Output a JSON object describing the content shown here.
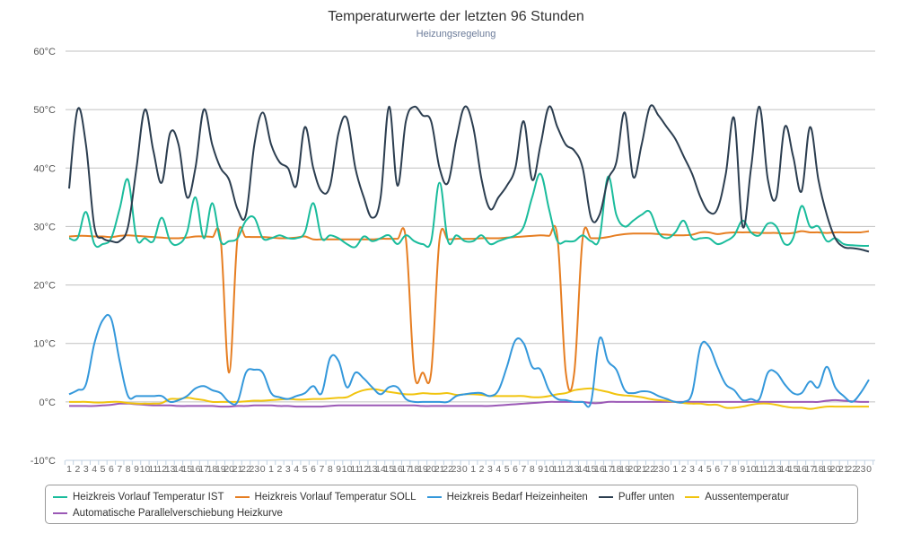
{
  "chart_data": {
    "type": "line",
    "title": "Temperaturwerte der letzten 96 Stunden",
    "subtitle": "Heizungsregelung",
    "xlabel": "",
    "ylabel": "",
    "ylim": [
      -10,
      60
    ],
    "yticks": [
      60,
      50,
      40,
      30,
      20,
      10,
      0,
      -10
    ],
    "y_unit": "°C",
    "grid": true,
    "legend_position": "bottom",
    "x": [
      "1",
      "2",
      "3",
      "4",
      "5",
      "6",
      "7",
      "8",
      "9",
      "10",
      "11",
      "12",
      "13",
      "14",
      "15",
      "16",
      "17",
      "18",
      "19",
      "20",
      "21",
      "22",
      "23",
      "0",
      "1",
      "2",
      "3",
      "4",
      "5",
      "6",
      "7",
      "8",
      "9",
      "10",
      "11",
      "12",
      "13",
      "14",
      "15",
      "16",
      "17",
      "18",
      "19",
      "20",
      "21",
      "22",
      "23",
      "0",
      "1",
      "2",
      "3",
      "4",
      "5",
      "6",
      "7",
      "8",
      "9",
      "10",
      "11",
      "12",
      "13",
      "14",
      "15",
      "16",
      "17",
      "18",
      "19",
      "20",
      "21",
      "22",
      "23",
      "0",
      "1",
      "2",
      "3",
      "4",
      "5",
      "6",
      "7",
      "8",
      "9",
      "10",
      "11",
      "12",
      "13",
      "14",
      "15",
      "16",
      "17",
      "18",
      "19",
      "20",
      "21",
      "22",
      "23",
      "0"
    ],
    "series": [
      {
        "name": "Heizkreis Vorlauf Temperatur IST",
        "color": "#1abc9c",
        "values": [
          28,
          28,
          32.5,
          27,
          27,
          28,
          33,
          38,
          28,
          28,
          27.5,
          31.5,
          27.5,
          27,
          29,
          35,
          28,
          34,
          27.5,
          27.5,
          28,
          31,
          31.5,
          28,
          28,
          28.5,
          28,
          28,
          29,
          34,
          28,
          28.5,
          28,
          27,
          26.5,
          28.3,
          27.5,
          28,
          28.5,
          27,
          28.5,
          27.5,
          27,
          27.5,
          37.5,
          27.5,
          28.5,
          27.5,
          27.5,
          28.5,
          27,
          27.5,
          28,
          28.5,
          30,
          35,
          39,
          33,
          27.5,
          27.5,
          27.5,
          28.5,
          27.5,
          28,
          38.5,
          32,
          30,
          31,
          32,
          32.5,
          29,
          28,
          29,
          31,
          28,
          28,
          28,
          27,
          27.5,
          28.5,
          31,
          29,
          28.5,
          30.5,
          30,
          27,
          28,
          33.5,
          30,
          30,
          27.5,
          28,
          27,
          26.8,
          26.7,
          26.7
        ]
      },
      {
        "name": "Heizkreis Vorlauf Temperatur SOLL",
        "color": "#e67e22",
        "values": [
          28.3,
          28.4,
          28.4,
          28.3,
          28.3,
          28.2,
          28.4,
          28.5,
          28.4,
          28.3,
          28.2,
          28.1,
          28,
          28,
          28.1,
          28.3,
          28.3,
          28.2,
          27.8,
          5,
          28,
          28.2,
          28.2,
          28.2,
          28.1,
          28,
          28,
          28.1,
          28.3,
          27.8,
          27.8,
          27.8,
          27.8,
          27.8,
          27.8,
          27.8,
          27.8,
          27.9,
          27.9,
          27.9,
          27.9,
          5,
          5,
          5,
          27.8,
          27.8,
          27.9,
          27.9,
          27.9,
          28,
          28,
          28,
          28.1,
          28.2,
          28.3,
          28.4,
          28.5,
          28.4,
          28.2,
          5,
          5,
          28,
          28,
          28,
          28.2,
          28.5,
          28.7,
          28.8,
          28.8,
          28.8,
          28.7,
          28.6,
          28.5,
          28.5,
          28.6,
          29,
          29,
          28.7,
          28.9,
          29,
          29,
          29,
          28.9,
          28.9,
          28.9,
          28.8,
          28.9,
          29.2,
          29,
          29,
          28.9,
          29,
          29,
          29,
          29,
          29.2
        ]
      },
      {
        "name": "Heizkreis Bedarf Heizeinheiten",
        "color": "#3498db",
        "values": [
          1.3,
          2,
          3,
          10,
          14,
          14.2,
          7,
          1,
          1,
          1,
          1,
          1,
          0,
          0.3,
          1,
          2.3,
          2.7,
          2,
          1.5,
          0,
          0,
          5,
          5.5,
          5,
          1.5,
          0.8,
          0.5,
          1,
          1.5,
          2.7,
          1.5,
          7.5,
          7,
          2.5,
          5,
          4,
          2.5,
          1.3,
          2.5,
          2.5,
          0.5,
          0,
          0,
          0,
          0,
          0,
          1,
          1.3,
          1.5,
          1.5,
          1,
          2,
          6,
          10.5,
          10,
          6,
          5.5,
          2,
          0.5,
          0.3,
          0,
          0,
          0,
          10.8,
          7,
          5.5,
          2,
          1.5,
          1.8,
          1.7,
          1,
          0.5,
          0,
          0,
          1.5,
          9.5,
          9.5,
          6,
          3,
          2,
          0.3,
          0.5,
          0.5,
          5,
          5,
          3,
          1.5,
          1.5,
          3.5,
          2.5,
          6,
          2.5,
          1,
          0,
          1.5,
          3.8
        ]
      },
      {
        "name": "Puffer unten",
        "color": "#2c3e50",
        "values": [
          36.5,
          50,
          44,
          30,
          28,
          27.5,
          27.5,
          30,
          40,
          50,
          43,
          37.5,
          46,
          44,
          35,
          40,
          50,
          44,
          40,
          38,
          33,
          32,
          44,
          49.5,
          44,
          41,
          40,
          37,
          47,
          40,
          36,
          37,
          46,
          48.5,
          40,
          35,
          31.5,
          35,
          50.5,
          37,
          48,
          50.5,
          49,
          48,
          40,
          37.5,
          45,
          50.5,
          47,
          38,
          33,
          35,
          37,
          40,
          48,
          38,
          44,
          50.5,
          47,
          44,
          43,
          40,
          31.5,
          32,
          38,
          41,
          49.5,
          38.5,
          44,
          50.5,
          49,
          47,
          45,
          42,
          39,
          35,
          32.5,
          33,
          39,
          48.5,
          30,
          40,
          50.5,
          38,
          35,
          47,
          42,
          36,
          47,
          38,
          32,
          28,
          26.5,
          26.3,
          26.1,
          25.7
        ]
      },
      {
        "name": "Aussentemperatur",
        "color": "#f1c40f",
        "values": [
          0,
          0,
          0,
          -0.1,
          -0.1,
          0,
          0,
          -0.2,
          -0.3,
          -0.3,
          -0.3,
          -0.2,
          0.5,
          0.5,
          0.7,
          0.5,
          0.3,
          0,
          0,
          0,
          0,
          0.1,
          0.2,
          0.2,
          0.3,
          0.4,
          0.5,
          0.4,
          0.4,
          0.5,
          0.5,
          0.6,
          0.7,
          0.8,
          1.5,
          2,
          2.2,
          2,
          1.7,
          1.5,
          1.3,
          1.3,
          1.5,
          1.4,
          1.4,
          1.5,
          1.2,
          1.3,
          1.3,
          1.2,
          1,
          1,
          1,
          1,
          1,
          0.8,
          0.8,
          1,
          1.3,
          1.5,
          2,
          2.2,
          2.3,
          2,
          1.7,
          1.3,
          1.1,
          1,
          0.8,
          0.5,
          0.3,
          0.2,
          0,
          -0.2,
          -0.3,
          -0.3,
          -0.5,
          -0.5,
          -1,
          -1,
          -0.8,
          -0.5,
          -0.3,
          -0.3,
          -0.5,
          -0.8,
          -1,
          -1,
          -1.2,
          -1,
          -0.8,
          -0.8,
          -0.8,
          -0.8,
          -0.8,
          -0.8
        ]
      },
      {
        "name": "Automatische Parallelverschiebung Heizkurve",
        "color": "#9b59b6",
        "values": [
          -0.7,
          -0.7,
          -0.7,
          -0.7,
          -0.6,
          -0.5,
          -0.3,
          -0.3,
          -0.4,
          -0.5,
          -0.6,
          -0.6,
          -0.6,
          -0.7,
          -0.7,
          -0.7,
          -0.7,
          -0.7,
          -0.8,
          -0.8,
          -0.7,
          -0.7,
          -0.6,
          -0.6,
          -0.6,
          -0.7,
          -0.7,
          -0.8,
          -0.8,
          -0.8,
          -0.8,
          -0.7,
          -0.6,
          -0.6,
          -0.6,
          -0.6,
          -0.6,
          -0.6,
          -0.6,
          -0.6,
          -0.6,
          -0.6,
          -0.7,
          -0.7,
          -0.7,
          -0.7,
          -0.7,
          -0.7,
          -0.7,
          -0.7,
          -0.7,
          -0.6,
          -0.5,
          -0.4,
          -0.3,
          -0.2,
          -0.1,
          0,
          0,
          0,
          0,
          0,
          -0.2,
          -0.2,
          0,
          0,
          0,
          0,
          0,
          0,
          0,
          0,
          0,
          0,
          0,
          0,
          0,
          0,
          0,
          0,
          0,
          0,
          0,
          0,
          0,
          0,
          0,
          0,
          0,
          0,
          0.2,
          0.3,
          0.2,
          0.1,
          0,
          0
        ]
      }
    ]
  }
}
